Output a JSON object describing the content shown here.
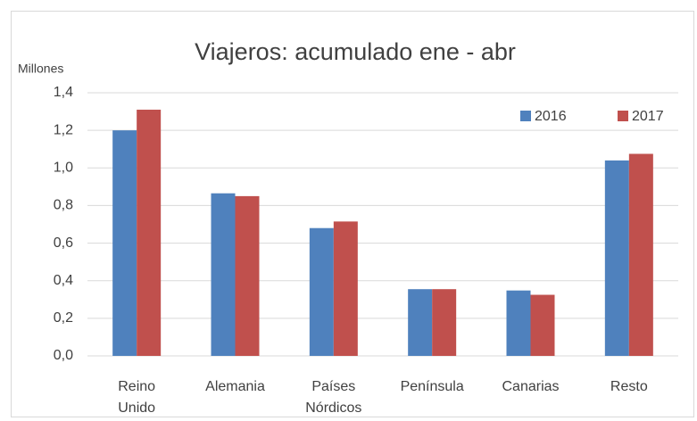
{
  "chart_data": {
    "type": "bar",
    "title": "Viajeros: acumulado ene - abr",
    "y_label": "Millones",
    "categories": [
      "Reino Unido",
      "Alemania",
      "Países Nórdicos",
      "Península",
      "Canarias",
      "Resto"
    ],
    "series": [
      {
        "name": "2016",
        "color": "#4f81bd",
        "values": [
          1.2,
          0.865,
          0.68,
          0.355,
          0.348,
          1.04
        ]
      },
      {
        "name": "2017",
        "color": "#c0504d",
        "values": [
          1.31,
          0.85,
          0.715,
          0.355,
          0.325,
          1.075
        ]
      }
    ],
    "ylim": [
      0,
      1.4
    ],
    "yticks": [
      {
        "value": 0,
        "label": "0,0"
      },
      {
        "value": 0.2,
        "label": "0,2"
      },
      {
        "value": 0.4,
        "label": "0,4"
      },
      {
        "value": 0.6,
        "label": "0,6"
      },
      {
        "value": 0.8,
        "label": "0,8"
      },
      {
        "value": 1.0,
        "label": "1,0"
      },
      {
        "value": 1.2,
        "label": "1,2"
      },
      {
        "value": 1.4,
        "label": "1,4"
      }
    ],
    "grid": true,
    "legend": "top-right"
  }
}
